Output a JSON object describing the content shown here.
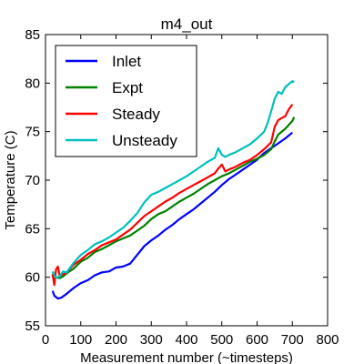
{
  "chart_data": {
    "type": "line",
    "title": "m4_out",
    "xlabel": "Measurement number (~timesteps)",
    "ylabel": "Temperature (C)",
    "xlim": [
      0,
      800
    ],
    "ylim": [
      55,
      85
    ],
    "xticks": [
      0,
      100,
      200,
      300,
      400,
      500,
      600,
      700,
      800
    ],
    "yticks": [
      55,
      60,
      65,
      70,
      75,
      80,
      85
    ],
    "grid": false,
    "legend_position": "top-left",
    "series": [
      {
        "name": "Inlet",
        "color": "#0000ff",
        "points": [
          [
            20,
            58.6
          ],
          [
            25,
            58.1
          ],
          [
            35,
            57.8
          ],
          [
            45,
            57.9
          ],
          [
            60,
            58.3
          ],
          [
            80,
            58.9
          ],
          [
            100,
            59.4
          ],
          [
            120,
            59.7
          ],
          [
            140,
            60.2
          ],
          [
            160,
            60.5
          ],
          [
            180,
            60.6
          ],
          [
            200,
            61.0
          ],
          [
            220,
            61.1
          ],
          [
            240,
            61.4
          ],
          [
            260,
            62.3
          ],
          [
            280,
            63.2
          ],
          [
            300,
            63.8
          ],
          [
            320,
            64.3
          ],
          [
            340,
            64.9
          ],
          [
            360,
            65.4
          ],
          [
            380,
            66.0
          ],
          [
            400,
            66.5
          ],
          [
            420,
            67.0
          ],
          [
            440,
            67.6
          ],
          [
            460,
            68.2
          ],
          [
            480,
            68.8
          ],
          [
            500,
            69.5
          ],
          [
            520,
            70.1
          ],
          [
            540,
            70.6
          ],
          [
            560,
            71.1
          ],
          [
            580,
            71.6
          ],
          [
            600,
            72.1
          ],
          [
            620,
            72.8
          ],
          [
            640,
            73.3
          ],
          [
            660,
            73.8
          ],
          [
            680,
            74.3
          ],
          [
            700,
            74.9
          ]
        ]
      },
      {
        "name": "Expt",
        "color": "#008000",
        "points": [
          [
            20,
            60.4
          ],
          [
            30,
            60.0
          ],
          [
            40,
            59.9
          ],
          [
            50,
            60.1
          ],
          [
            60,
            60.4
          ],
          [
            80,
            60.9
          ],
          [
            100,
            61.6
          ],
          [
            120,
            62.0
          ],
          [
            140,
            62.6
          ],
          [
            160,
            62.9
          ],
          [
            180,
            63.3
          ],
          [
            200,
            63.7
          ],
          [
            220,
            64.0
          ],
          [
            240,
            64.3
          ],
          [
            260,
            64.8
          ],
          [
            280,
            65.3
          ],
          [
            300,
            66.0
          ],
          [
            320,
            66.5
          ],
          [
            340,
            66.8
          ],
          [
            360,
            67.3
          ],
          [
            380,
            67.8
          ],
          [
            400,
            68.2
          ],
          [
            420,
            68.6
          ],
          [
            440,
            69.1
          ],
          [
            460,
            69.6
          ],
          [
            480,
            70.0
          ],
          [
            500,
            70.4
          ],
          [
            520,
            70.7
          ],
          [
            540,
            71.1
          ],
          [
            560,
            71.5
          ],
          [
            580,
            71.9
          ],
          [
            600,
            72.2
          ],
          [
            620,
            72.6
          ],
          [
            640,
            73.2
          ],
          [
            650,
            74.0
          ],
          [
            660,
            74.7
          ],
          [
            680,
            75.3
          ],
          [
            700,
            76.1
          ],
          [
            705,
            76.5
          ]
        ]
      },
      {
        "name": "Steady",
        "color": "#ff0000",
        "points": [
          [
            20,
            60.3
          ],
          [
            25,
            59.2
          ],
          [
            30,
            60.8
          ],
          [
            35,
            61.1
          ],
          [
            40,
            60.2
          ],
          [
            50,
            60.3
          ],
          [
            60,
            60.5
          ],
          [
            80,
            61.3
          ],
          [
            100,
            61.8
          ],
          [
            120,
            62.4
          ],
          [
            140,
            62.8
          ],
          [
            160,
            63.3
          ],
          [
            180,
            63.6
          ],
          [
            200,
            63.9
          ],
          [
            220,
            64.4
          ],
          [
            240,
            64.9
          ],
          [
            260,
            65.6
          ],
          [
            280,
            66.3
          ],
          [
            300,
            66.8
          ],
          [
            320,
            67.3
          ],
          [
            340,
            67.8
          ],
          [
            360,
            68.2
          ],
          [
            380,
            68.7
          ],
          [
            400,
            69.1
          ],
          [
            420,
            69.5
          ],
          [
            440,
            69.9
          ],
          [
            460,
            70.3
          ],
          [
            480,
            70.7
          ],
          [
            490,
            71.2
          ],
          [
            500,
            71.6
          ],
          [
            510,
            70.9
          ],
          [
            520,
            71.1
          ],
          [
            540,
            71.4
          ],
          [
            560,
            71.8
          ],
          [
            580,
            72.1
          ],
          [
            600,
            72.6
          ],
          [
            620,
            73.2
          ],
          [
            640,
            73.9
          ],
          [
            650,
            75.5
          ],
          [
            660,
            76.2
          ],
          [
            670,
            76.4
          ],
          [
            680,
            76.6
          ],
          [
            690,
            77.3
          ],
          [
            700,
            77.8
          ]
        ]
      },
      {
        "name": "Unsteady",
        "color": "#00bfbf",
        "points": [
          [
            20,
            60.6
          ],
          [
            30,
            59.9
          ],
          [
            40,
            60.1
          ],
          [
            50,
            60.6
          ],
          [
            60,
            60.5
          ],
          [
            80,
            61.5
          ],
          [
            100,
            62.3
          ],
          [
            120,
            62.8
          ],
          [
            140,
            63.4
          ],
          [
            160,
            63.7
          ],
          [
            180,
            64.1
          ],
          [
            200,
            64.6
          ],
          [
            220,
            65.1
          ],
          [
            240,
            65.8
          ],
          [
            260,
            66.6
          ],
          [
            280,
            67.7
          ],
          [
            300,
            68.5
          ],
          [
            320,
            68.8
          ],
          [
            340,
            69.2
          ],
          [
            360,
            69.6
          ],
          [
            380,
            70.0
          ],
          [
            400,
            70.4
          ],
          [
            420,
            70.9
          ],
          [
            440,
            71.4
          ],
          [
            460,
            71.9
          ],
          [
            480,
            72.3
          ],
          [
            490,
            73.3
          ],
          [
            500,
            72.6
          ],
          [
            510,
            72.4
          ],
          [
            520,
            72.6
          ],
          [
            540,
            72.9
          ],
          [
            560,
            73.3
          ],
          [
            580,
            73.7
          ],
          [
            600,
            74.3
          ],
          [
            620,
            75.0
          ],
          [
            630,
            75.9
          ],
          [
            640,
            77.1
          ],
          [
            650,
            78.4
          ],
          [
            660,
            79.1
          ],
          [
            670,
            78.9
          ],
          [
            680,
            79.6
          ],
          [
            690,
            79.9
          ],
          [
            700,
            80.2
          ],
          [
            705,
            80.1
          ]
        ]
      }
    ]
  }
}
